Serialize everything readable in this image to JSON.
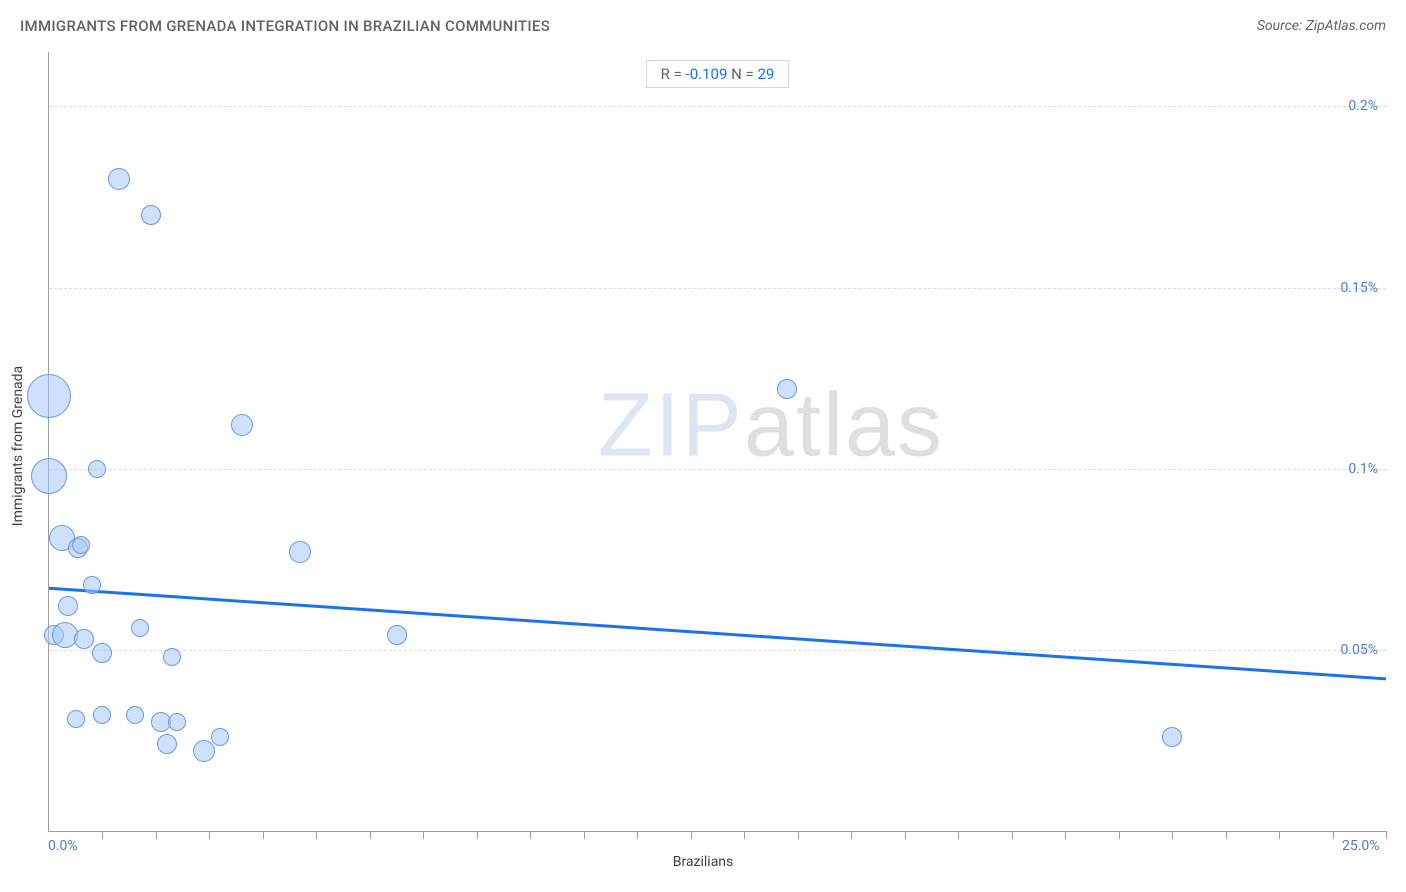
{
  "header": {
    "title": "IMMIGRANTS FROM GRENADA INTEGRATION IN BRAZILIAN COMMUNITIES",
    "source_prefix": "Source: ",
    "source_name": "ZipAtlas.com"
  },
  "watermark": {
    "z": "ZIP",
    "rest": "atlas"
  },
  "stats": {
    "r_label": "R = ",
    "r_value": "-0.109",
    "n_label": "   N = ",
    "n_value": "29"
  },
  "chart": {
    "type": "scatter",
    "background_color": "#ffffff",
    "grid_color": "#dadce0",
    "axis_color": "#9e9e9e",
    "bubble_fill": "rgba(168,199,250,0.55)",
    "bubble_stroke": "#6a9bd8",
    "trend_color": "#1a73e8",
    "trend_width": 3,
    "x_axis": {
      "title": "Brazilians",
      "min": 0.0,
      "max": 25.0,
      "label_min": "0.0%",
      "label_max": "25.0%",
      "ticks_pct": [
        4,
        8,
        12,
        16,
        20,
        24,
        28,
        32,
        36,
        40,
        44,
        48,
        52,
        56,
        60,
        64,
        68,
        72,
        76,
        80,
        84,
        88,
        92,
        96,
        100
      ]
    },
    "y_axis": {
      "title": "Immigrants from Grenada",
      "min": 0.0,
      "max": 0.215,
      "gridlines": [
        {
          "value": 0.05,
          "label": "0.05%"
        },
        {
          "value": 0.1,
          "label": "0.1%"
        },
        {
          "value": 0.15,
          "label": "0.15%"
        },
        {
          "value": 0.2,
          "label": "0.2%"
        }
      ]
    },
    "trendline": {
      "y_at_xmin": 0.067,
      "y_at_xmax": 0.042
    },
    "points": [
      {
        "x": 0.0,
        "y": 0.12,
        "r": 22
      },
      {
        "x": 0.0,
        "y": 0.098,
        "r": 18
      },
      {
        "x": 0.25,
        "y": 0.081,
        "r": 13
      },
      {
        "x": 0.35,
        "y": 0.062,
        "r": 10
      },
      {
        "x": 0.1,
        "y": 0.054,
        "r": 10
      },
      {
        "x": 0.3,
        "y": 0.054,
        "r": 13
      },
      {
        "x": 0.65,
        "y": 0.053,
        "r": 10
      },
      {
        "x": 0.55,
        "y": 0.078,
        "r": 10
      },
      {
        "x": 0.6,
        "y": 0.079,
        "r": 9
      },
      {
        "x": 0.8,
        "y": 0.068,
        "r": 9
      },
      {
        "x": 0.9,
        "y": 0.1,
        "r": 9
      },
      {
        "x": 1.0,
        "y": 0.049,
        "r": 10
      },
      {
        "x": 1.3,
        "y": 0.18,
        "r": 11
      },
      {
        "x": 1.9,
        "y": 0.17,
        "r": 10
      },
      {
        "x": 1.7,
        "y": 0.056,
        "r": 9
      },
      {
        "x": 2.3,
        "y": 0.048,
        "r": 9
      },
      {
        "x": 0.5,
        "y": 0.031,
        "r": 9
      },
      {
        "x": 1.0,
        "y": 0.032,
        "r": 9
      },
      {
        "x": 1.6,
        "y": 0.032,
        "r": 9
      },
      {
        "x": 2.1,
        "y": 0.03,
        "r": 10
      },
      {
        "x": 2.4,
        "y": 0.03,
        "r": 9
      },
      {
        "x": 2.2,
        "y": 0.024,
        "r": 10
      },
      {
        "x": 2.9,
        "y": 0.022,
        "r": 11
      },
      {
        "x": 3.2,
        "y": 0.026,
        "r": 9
      },
      {
        "x": 3.6,
        "y": 0.112,
        "r": 11
      },
      {
        "x": 4.7,
        "y": 0.077,
        "r": 11
      },
      {
        "x": 6.5,
        "y": 0.054,
        "r": 10
      },
      {
        "x": 13.8,
        "y": 0.122,
        "r": 10
      },
      {
        "x": 21.0,
        "y": 0.026,
        "r": 10
      }
    ]
  }
}
